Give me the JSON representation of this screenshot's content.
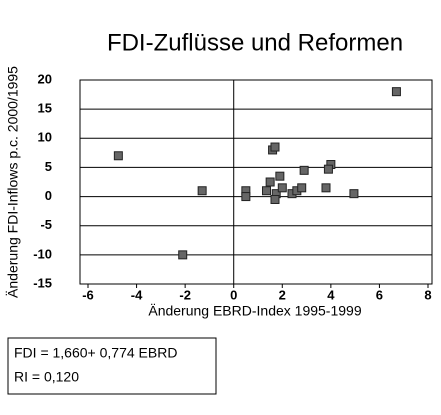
{
  "chart_data": {
    "type": "scatter",
    "title": "FDI-Zuflüsse und Reformen",
    "x_label": "Änderung EBRD-Index 1995-1999",
    "y_label": "Änderung FDI-Inflows p.c. 2000/1995",
    "annotations": [
      "FDI = 1,660+ 0,774 EBRD",
      "RI = 0,120"
    ],
    "color": "#666666",
    "series": [
      {
        "x": [
          -4.75,
          -1.3,
          -2.1,
          0.5,
          0.5,
          1.35,
          1.5,
          1.6,
          1.7,
          1.75,
          1.7,
          1.9,
          2.0,
          2.4,
          2.6,
          2.8,
          2.9,
          3.8,
          4.0,
          3.9,
          4.95,
          6.7
        ],
        "values": [
          7,
          1,
          -10,
          1,
          0,
          1,
          2.5,
          8,
          8.5,
          0.5,
          -0.5,
          3.5,
          1.5,
          0.5,
          1,
          1.5,
          4.5,
          1.5,
          5.5,
          4.7,
          0.5,
          18
        ]
      }
    ],
    "xlim": [
      -6,
      8
    ],
    "xticks": [
      -6,
      -4,
      -2,
      0,
      2,
      4,
      6,
      8
    ],
    "ylim": [
      -15,
      20
    ],
    "yticks": [
      -15,
      -10,
      -5,
      0,
      5,
      10,
      15,
      20
    ],
    "grid": true
  }
}
